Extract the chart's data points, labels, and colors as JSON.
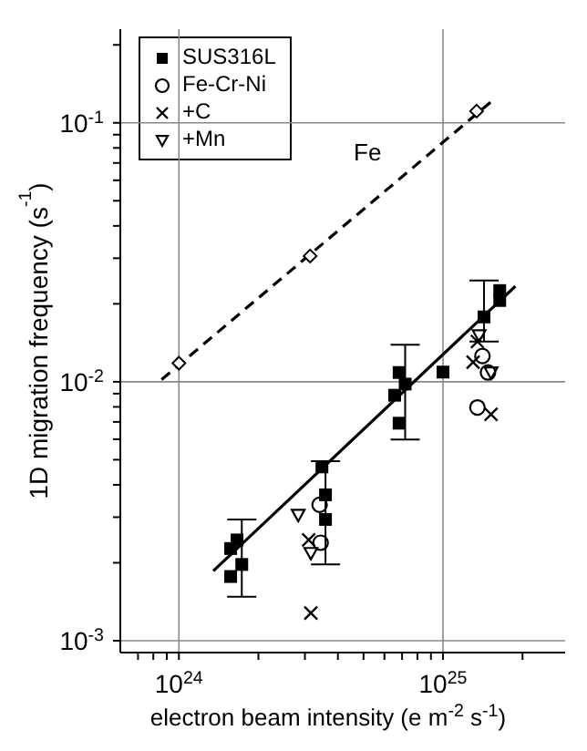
{
  "chart_data": {
    "type": "scatter",
    "xlabel": "electron beam intensity (e m$^{-2}$ s$^{-1}$)",
    "ylabel": "1D migration frequency (s$^{-1}$)",
    "log": "xy",
    "grid": true,
    "legend": "top left",
    "xlim": [
      6e+23,
      2.9e+25
    ],
    "xticks": [
      {
        "value": 7e+23,
        "label": null
      },
      {
        "value": 8e+23,
        "label": null
      },
      {
        "value": 9e+23,
        "label": null
      },
      {
        "value": 1e+24,
        "label": "10$^{24}$"
      },
      {
        "value": 2e+24,
        "label": null
      },
      {
        "value": 3e+24,
        "label": null
      },
      {
        "value": 4e+24,
        "label": null
      },
      {
        "value": 5e+24,
        "label": null
      },
      {
        "value": 6e+24,
        "label": null
      },
      {
        "value": 7e+24,
        "label": null
      },
      {
        "value": 8e+24,
        "label": null
      },
      {
        "value": 9e+24,
        "label": null
      },
      {
        "value": 1e+25,
        "label": "10$^{25}$"
      },
      {
        "value": 2e+25,
        "label": null
      }
    ],
    "ylim": [
      0.0009,
      0.23
    ],
    "yticks": [
      {
        "value": 0.001,
        "label": "10$^{-3}$"
      },
      {
        "value": 0.002,
        "label": null
      },
      {
        "value": 0.003,
        "label": null
      },
      {
        "value": 0.004,
        "label": null
      },
      {
        "value": 0.005,
        "label": null
      },
      {
        "value": 0.006,
        "label": null
      },
      {
        "value": 0.007,
        "label": null
      },
      {
        "value": 0.008,
        "label": null
      },
      {
        "value": 0.009,
        "label": null
      },
      {
        "value": 0.01,
        "label": "10$^{-2}$"
      },
      {
        "value": 0.02,
        "label": null
      },
      {
        "value": 0.03,
        "label": null
      },
      {
        "value": 0.04,
        "label": null
      },
      {
        "value": 0.05,
        "label": null
      },
      {
        "value": 0.06,
        "label": null
      },
      {
        "value": 0.07,
        "label": null
      },
      {
        "value": 0.08,
        "label": null
      },
      {
        "value": 0.09,
        "label": null
      },
      {
        "value": 0.1,
        "label": "10$^{-1}$"
      },
      {
        "value": 0.2,
        "label": null
      }
    ],
    "annotations": [
      "Fe"
    ],
    "series": [
      {
        "name": "SUS316L",
        "marker": "square",
        "color": "#000000",
        "x": [
          1.57e+24,
          1.66e+24,
          1.57e+24,
          1.73e+24,
          3.48e+24,
          3.59e+24,
          3.59e+24,
          6.82e+24,
          6.56e+24,
          7.19e+24,
          6.82e+24,
          1e+25,
          1.64e+25,
          1.64e+25,
          1.43e+25
        ],
        "values": [
          0.00227,
          0.00245,
          0.00177,
          0.00197,
          0.00469,
          0.00366,
          0.00294,
          0.01086,
          0.00887,
          0.0098,
          0.00692,
          0.0109,
          0.0225,
          0.0206,
          0.0178
        ],
        "errors": [
          null,
          null,
          null,
          [
            0.00148,
            0.00294
          ],
          null,
          [
            0.00197,
            0.00494
          ],
          null,
          null,
          null,
          [
            0.00598,
            0.0139
          ],
          null,
          null,
          null,
          null,
          [
            0.0143,
            0.0246
          ]
        ]
      },
      {
        "name": "Fe-Cr-Ni",
        "marker": "circle",
        "color": "#000000",
        "x": [
          3.41e+24,
          3.44e+24,
          1.41e+25,
          1.48e+25,
          1.35e+25
        ],
        "values": [
          0.00335,
          0.00239,
          0.01257,
          0.01086,
          0.00796
        ]
      },
      {
        "name": "+C",
        "marker": "cross",
        "color": "#000000",
        "x": [
          3.1e+24,
          3.16e+24,
          1.3e+25,
          1.52e+25,
          1.35e+25
        ],
        "values": [
          0.00245,
          0.00128,
          0.0119,
          0.00748,
          0.0143
        ]
      },
      {
        "name": "+Mn",
        "marker": "triangle",
        "color": "#000000",
        "x": [
          2.83e+24,
          3.16e+24,
          1.52e+25,
          1.37e+25
        ],
        "values": [
          0.00306,
          0.00218,
          0.01086,
          0.0151
        ]
      },
      {
        "marker": "diamond",
        "color": "#000000",
        "x": [
          1e+24,
          3.14e+24,
          1.34e+25
        ],
        "values": [
          0.0118,
          0.0306,
          0.111
        ]
      },
      {
        "type": "line",
        "marker": "none",
        "line_style": "solid",
        "color": "#000000",
        "x": [
          1.35e+24,
          1.88e+25
        ],
        "values": [
          0.00186,
          0.0234
        ]
      },
      {
        "type": "line",
        "marker": "none",
        "line_style": "dashed",
        "color": "#000000",
        "x": [
          8.6e+23,
          1.57e+25
        ],
        "values": [
          0.0102,
          0.124
        ]
      }
    ]
  }
}
